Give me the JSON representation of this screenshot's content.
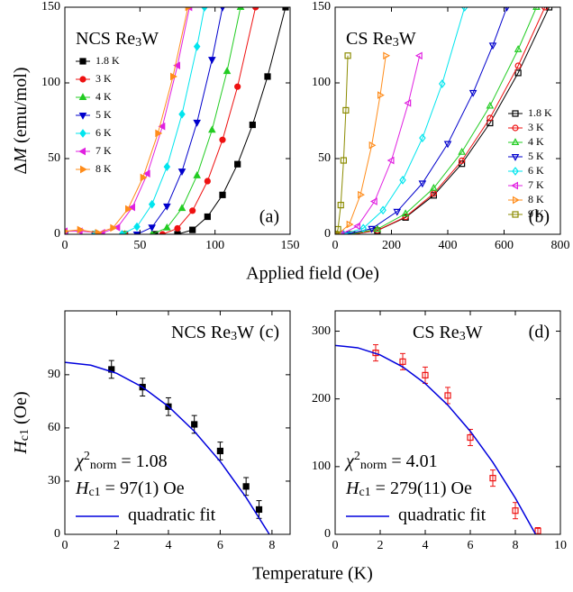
{
  "chart_data": [
    {
      "type": "line",
      "label": [
        "NCS Re",
        "3",
        "W"
      ],
      "panel": "(a)",
      "xlabel": "Applied field (Oe)",
      "ylabel": [
        "Δ",
        "M",
        " (emu/mol)"
      ],
      "xlim": [
        0,
        150
      ],
      "ylim": [
        0,
        150
      ],
      "xticks": [
        0,
        50,
        100,
        150
      ],
      "yticks": [
        0,
        50,
        100,
        150
      ],
      "filled": true,
      "legend": "upper left",
      "series": [
        {
          "name": "1.8 K",
          "color": "#000000",
          "marker": "square",
          "x": [
            0,
            20,
            40,
            60,
            75,
            85,
            95,
            105,
            115,
            125,
            135,
            147
          ],
          "values": [
            0,
            0,
            0,
            0,
            0,
            2.9,
            11.6,
            26.0,
            46.3,
            72.3,
            104.2,
            150
          ]
        },
        {
          "name": "3 K",
          "color": "#ee1111",
          "marker": "circle",
          "x": [
            0,
            20,
            40,
            65,
            75,
            85,
            95,
            105,
            115,
            127
          ],
          "values": [
            0,
            0,
            0,
            0,
            3.9,
            15.6,
            35.1,
            62.4,
            97.5,
            150
          ]
        },
        {
          "name": "4 K",
          "color": "#22cc22",
          "marker": "tri-up",
          "x": [
            0,
            20,
            40,
            58,
            68,
            78,
            88,
            98,
            108,
            117
          ],
          "values": [
            0,
            0,
            0,
            0,
            4.3,
            17.2,
            38.8,
            68.9,
            107.7,
            150
          ]
        },
        {
          "name": "5 K",
          "color": "#0000cc",
          "marker": "tri-down",
          "x": [
            0,
            20,
            48,
            58,
            68,
            78,
            88,
            98,
            105
          ],
          "values": [
            0,
            0,
            0,
            4.6,
            18.5,
            41.6,
            73.9,
            115.4,
            150
          ]
        },
        {
          "name": "6 K",
          "color": "#00e5ee",
          "marker": "diamond",
          "x": [
            0,
            20,
            38,
            48,
            58,
            68,
            78,
            88,
            93
          ],
          "values": [
            0,
            0,
            0,
            5.0,
            19.8,
            44.6,
            79.3,
            124,
            150
          ]
        },
        {
          "name": "7 K",
          "color": "#e020e0",
          "marker": "tri-left",
          "x": [
            0,
            10,
            25,
            35,
            45,
            55,
            65,
            75,
            83
          ],
          "values": [
            2,
            2,
            1,
            4.5,
            17.8,
            40.1,
            71.3,
            111.5,
            150
          ]
        },
        {
          "name": "8 K",
          "color": "#ff8c1a",
          "marker": "tri-right",
          "x": [
            0,
            10,
            22,
            32,
            42,
            52,
            62,
            72,
            82
          ],
          "values": [
            2,
            3,
            1,
            4.2,
            16.7,
            37.5,
            66.7,
            104.2,
            150
          ]
        }
      ]
    },
    {
      "type": "line",
      "label": [
        "CS Re",
        "3",
        "W"
      ],
      "panel": "(b)",
      "xlim": [
        0,
        800
      ],
      "ylim": [
        0,
        150
      ],
      "xticks": [
        0,
        200,
        400,
        600,
        800
      ],
      "yticks": [
        0,
        50,
        100,
        150
      ],
      "filled": false,
      "legend": "center right",
      "series": [
        {
          "name": "1.8 K",
          "color": "#000000",
          "marker": "square",
          "x": [
            0,
            60,
            150,
            250,
            350,
            450,
            550,
            650,
            760
          ],
          "values": [
            0,
            0,
            2.5,
            11.1,
            25.7,
            46.6,
            73.5,
            106.6,
            150
          ]
        },
        {
          "name": "3 K",
          "color": "#ee1111",
          "marker": "circle",
          "x": [
            0,
            60,
            150,
            250,
            350,
            450,
            550,
            650,
            745
          ],
          "values": [
            0,
            0,
            2.6,
            11.5,
            26.9,
            48.6,
            76.8,
            111.3,
            150
          ]
        },
        {
          "name": "4 K",
          "color": "#22cc22",
          "marker": "tri-up",
          "x": [
            0,
            50,
            150,
            250,
            350,
            450,
            550,
            650,
            715
          ],
          "values": [
            0,
            0,
            3.4,
            13.6,
            30.5,
            54.3,
            84.8,
            122.1,
            150
          ]
        },
        {
          "name": "5 K",
          "color": "#0000cc",
          "marker": "tri-down",
          "x": [
            0,
            40,
            130,
            220,
            310,
            400,
            490,
            560,
            610
          ],
          "values": [
            0,
            0,
            3.7,
            15.0,
            33.7,
            59.8,
            93.5,
            124.8,
            150
          ]
        },
        {
          "name": "6 K",
          "color": "#00e5ee",
          "marker": "diamond",
          "x": [
            0,
            30,
            100,
            170,
            240,
            310,
            380,
            460
          ],
          "values": [
            0,
            0,
            4.0,
            15.9,
            35.8,
            63.6,
            99.4,
            150
          ]
        },
        {
          "name": "7 K",
          "color": "#e020e0",
          "marker": "tri-left",
          "x": [
            0,
            20,
            80,
            140,
            200,
            260,
            300
          ],
          "values": [
            0,
            0,
            5.4,
            21.7,
            48.8,
            86.7,
            118
          ]
        },
        {
          "name": "8 K",
          "color": "#ff8c1a",
          "marker": "tri-right",
          "x": [
            0,
            10,
            50,
            90,
            130,
            160,
            180
          ],
          "values": [
            0,
            0,
            6.5,
            26.1,
            58.8,
            91.9,
            118
          ]
        },
        {
          "name": "9 K",
          "color": "#8b8b00",
          "marker": "square",
          "x": [
            0,
            3,
            10,
            20,
            30,
            38,
            45
          ],
          "values": [
            0,
            0,
            3.3,
            19.3,
            48.8,
            81.9,
            118
          ]
        }
      ]
    },
    {
      "type": "scatter",
      "label": [
        "NCS Re",
        "3",
        "W"
      ],
      "panel": "(c)",
      "xlabel": "Temperature (K)",
      "ylabel": [
        "H",
        "c1",
        " (Oe)"
      ],
      "chi": [
        "χ",
        "2",
        "norm",
        " = 1.08"
      ],
      "hc1": [
        "H",
        "c1",
        " = 97(1) Oe"
      ],
      "xlim": [
        0,
        8.7
      ],
      "ylim": [
        0,
        126
      ],
      "xticks": [
        0,
        2,
        4,
        6,
        8
      ],
      "yticks": [
        0,
        30,
        60,
        90
      ],
      "filled": true,
      "series": [
        {
          "color": "#000000",
          "marker": "square",
          "x": [
            1.8,
            3,
            4,
            5,
            6,
            7,
            7.5
          ],
          "values": [
            93,
            83,
            72,
            62,
            47,
            27,
            14
          ],
          "errors": [
            5,
            5,
            5,
            5,
            5,
            5,
            5
          ]
        },
        {
          "name": "quadratic fit",
          "color": "#0000dd",
          "x": [
            0,
            1,
            2,
            3,
            4,
            5,
            6,
            7,
            7.9
          ],
          "values": [
            97,
            95.4,
            90.8,
            83.0,
            72.1,
            58.1,
            41.1,
            20.8,
            0
          ]
        }
      ]
    },
    {
      "type": "scatter",
      "label": [
        "CS Re",
        "3",
        "W"
      ],
      "panel": "(d)",
      "chi": [
        "χ",
        "2",
        "norm",
        " = 4.01"
      ],
      "hc1": [
        "H",
        "c1",
        " = 279(11) Oe"
      ],
      "xlim": [
        0,
        10
      ],
      "ylim": [
        0,
        330
      ],
      "xticks": [
        0,
        2,
        4,
        6,
        8,
        10
      ],
      "yticks": [
        0,
        100,
        200,
        300
      ],
      "filled": false,
      "series": [
        {
          "color": "#ee1111",
          "marker": "square",
          "x": [
            1.8,
            3,
            4,
            5,
            6,
            7,
            8,
            9
          ],
          "values": [
            268,
            255,
            235,
            205,
            143,
            83,
            35,
            5
          ],
          "errors": [
            12,
            12,
            12,
            12,
            12,
            12,
            12,
            5
          ]
        },
        {
          "name": "quadratic fit",
          "color": "#0000dd",
          "x": [
            0,
            1,
            2,
            3,
            4,
            5,
            6,
            7,
            8,
            8.9
          ],
          "values": [
            279,
            275.5,
            264.9,
            247.3,
            222.6,
            190.9,
            152.2,
            106.4,
            53.6,
            0
          ]
        }
      ]
    }
  ]
}
